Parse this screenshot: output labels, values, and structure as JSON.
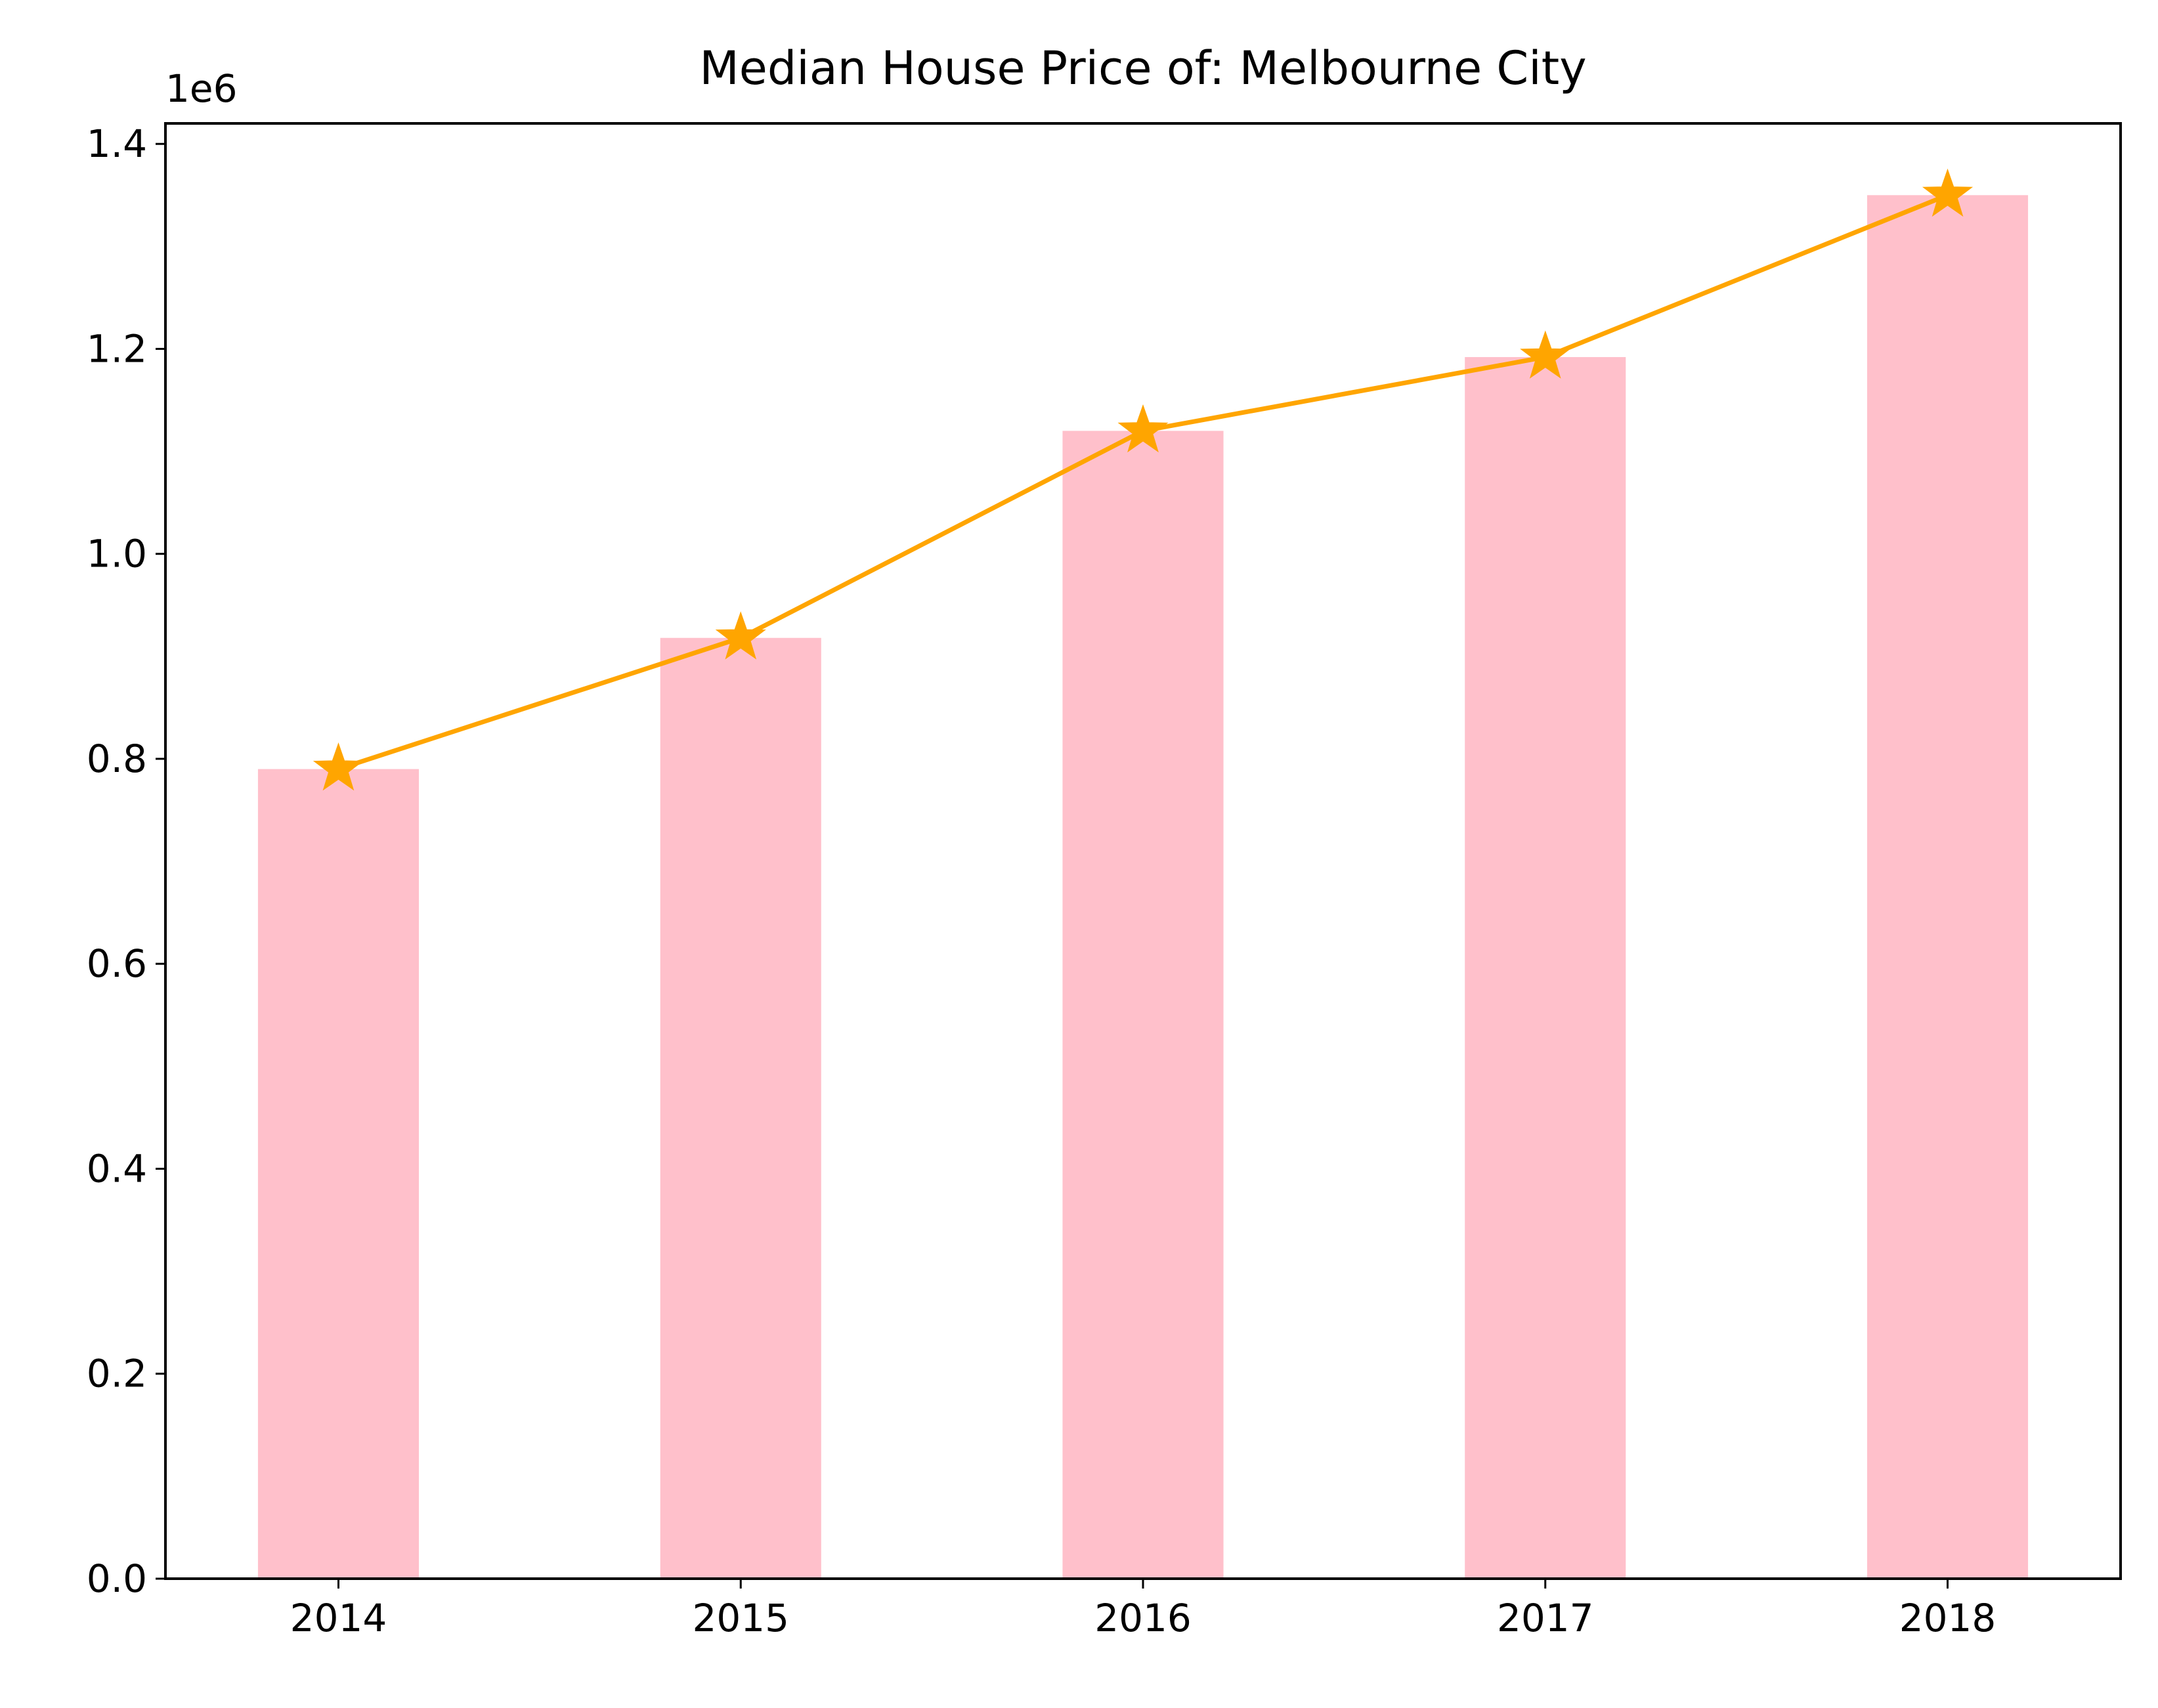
{
  "chart_data": {
    "type": "bar",
    "title": "Median House Price of: Melbourne City",
    "xlabel": "",
    "ylabel": "",
    "y_offset_label": "1e6",
    "categories": [
      "2014",
      "2015",
      "2016",
      "2017",
      "2018"
    ],
    "series": [
      {
        "kind": "bar",
        "values": [
          790000,
          918000,
          1120000,
          1192000,
          1350000
        ],
        "color": "#ffc0cb"
      },
      {
        "kind": "line",
        "marker": "star",
        "values": [
          790000,
          918000,
          1120000,
          1192000,
          1350000
        ],
        "color": "#ffa500"
      }
    ],
    "ylim": [
      0,
      1420000
    ],
    "yticks": [
      0,
      200000,
      400000,
      600000,
      800000,
      1000000,
      1200000,
      1400000
    ],
    "ytick_labels": [
      "0.0",
      "0.2",
      "0.4",
      "0.6",
      "0.8",
      "1.0",
      "1.2",
      "1.4"
    ],
    "grid": false,
    "legend": "none"
  }
}
